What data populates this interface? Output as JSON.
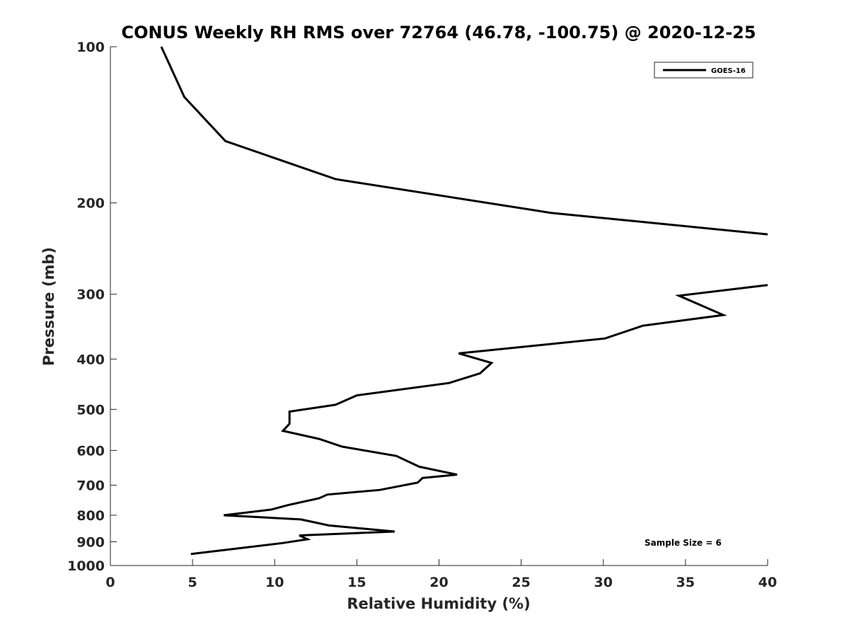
{
  "chart_data": {
    "type": "line",
    "title": "CONUS Weekly RH RMS over 72764 (46.78, -100.75) @ 2020-12-25",
    "xlabel": "Relative Humidity (%)",
    "ylabel": "Pressure (mb)",
    "xlim": [
      0,
      40
    ],
    "ylim": [
      100,
      1000
    ],
    "y_scale": "log",
    "y_reversed": true,
    "x_ticks": [
      0,
      5,
      10,
      15,
      20,
      25,
      30,
      35,
      40
    ],
    "y_ticks": [
      100,
      200,
      300,
      400,
      500,
      600,
      700,
      800,
      900,
      1000
    ],
    "grid": false,
    "legend_position": "top-right",
    "annotation": "Sample Size = 6",
    "series": [
      {
        "name": "GOES-16",
        "color": "#000000",
        "segments": [
          [
            [
              3.1,
              100
            ],
            [
              4.5,
              125
            ],
            [
              7.0,
              152
            ],
            [
              13.7,
              180
            ],
            [
              26.8,
              209
            ],
            [
              40.0,
              230
            ]
          ],
          [
            [
              40.0,
              288
            ],
            [
              34.6,
              302
            ],
            [
              37.3,
              329
            ],
            [
              32.4,
              345
            ],
            [
              30.1,
              365
            ],
            [
              21.2,
              390
            ],
            [
              23.2,
              407
            ],
            [
              22.5,
              426
            ],
            [
              20.6,
              445
            ],
            [
              15.0,
              470
            ],
            [
              13.7,
              490
            ],
            [
              10.9,
              505
            ],
            [
              10.9,
              525
            ],
            [
              10.9,
              533
            ],
            [
              10.5,
              550
            ],
            [
              12.7,
              570
            ],
            [
              14.1,
              590
            ],
            [
              17.4,
              615
            ],
            [
              18.8,
              645
            ],
            [
              21.1,
              668
            ],
            [
              19.0,
              678
            ],
            [
              18.7,
              692
            ],
            [
              16.4,
              715
            ],
            [
              13.2,
              730
            ],
            [
              12.7,
              742
            ],
            [
              10.8,
              765
            ],
            [
              9.8,
              780
            ],
            [
              6.9,
              800
            ],
            [
              11.6,
              815
            ],
            [
              13.3,
              837
            ],
            [
              17.3,
              860
            ],
            [
              11.5,
              875
            ],
            [
              12.0,
              890
            ],
            [
              10.5,
              905
            ],
            [
              4.9,
              950
            ]
          ]
        ]
      }
    ]
  }
}
